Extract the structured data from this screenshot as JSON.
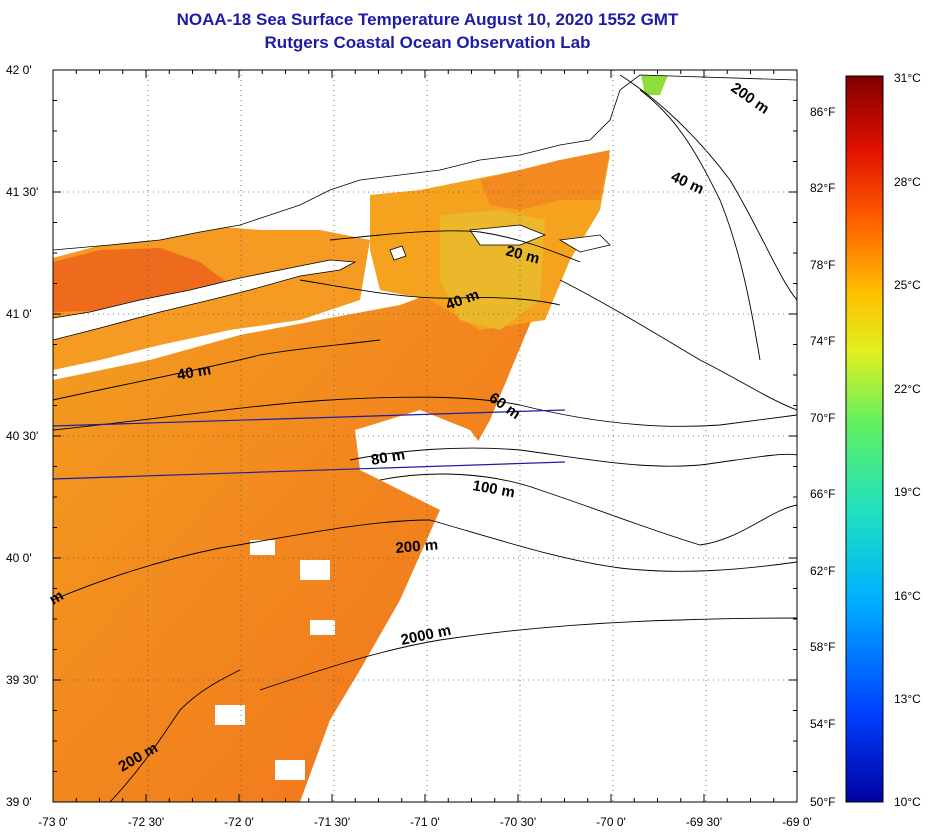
{
  "header": {
    "title": "NOAA-18 Sea Surface Temperature August 10, 2020 1552 GMT",
    "subtitle": "Rutgers Coastal Ocean Observation Lab"
  },
  "map": {
    "lat_labels": [
      "42 0'",
      "41 30'",
      "41 0'",
      "40 30'",
      "40 0'",
      "39 30'",
      "39 0'"
    ],
    "lon_labels": [
      "-73 0'",
      "-72 30'",
      "-72 0'",
      "-71 30'",
      "-71 0'",
      "-70 30'",
      "-70 0'",
      "-69 30'",
      "-69 0'"
    ],
    "lat_range": [
      39.0,
      42.0
    ],
    "lon_range": [
      -73.0,
      -69.0
    ],
    "grid": "dotted",
    "contour_labels": [
      "200 m",
      "40 m",
      "20 m",
      "40 m",
      "40 m",
      "60 m",
      "80 m",
      "100 m",
      "200 m",
      "2000 m",
      "200 m",
      "m"
    ],
    "colors": {
      "land_nodata": "#ffffff",
      "sst_warm_orange": "#f47a1e",
      "sst_mid_orange": "#f59a20",
      "sst_yellow": "#e8c22a",
      "sst_green": "#8fdd3a",
      "track_line": "#1c1ca8"
    }
  },
  "colorbar": {
    "celsius_labels": [
      "31°C",
      "28°C",
      "25°C",
      "22°C",
      "19°C",
      "16°C",
      "13°C",
      "10°C"
    ],
    "fahrenheit_labels": [
      "86°F",
      "82°F",
      "78°F",
      "74°F",
      "70°F",
      "66°F",
      "62°F",
      "58°F",
      "54°F",
      "50°F"
    ],
    "celsius_range": [
      10,
      31
    ],
    "fahrenheit_range": [
      50,
      88
    ],
    "colors": [
      "#0000a0",
      "#0040ff",
      "#00b0ff",
      "#20e0c0",
      "#60f060",
      "#e0f020",
      "#ffc000",
      "#ff6000",
      "#e01000",
      "#800000"
    ]
  }
}
